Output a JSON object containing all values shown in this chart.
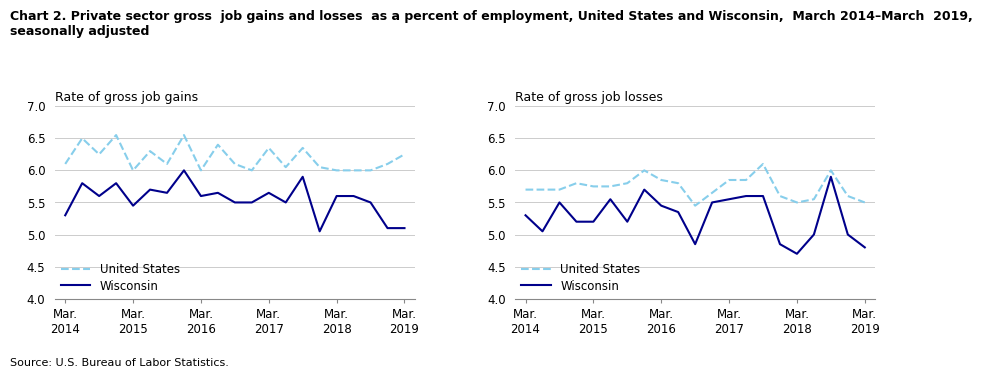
{
  "title": "Chart 2. Private sector gross  job gains and losses  as a percent of employment, United States and Wisconsin,  March 2014–March  2019,\nseasonally adjusted",
  "chart1_ylabel": "Rate of gross job gains",
  "chart2_ylabel": "Rate of gross job losses",
  "source": "Source: U.S. Bureau of Labor Statistics.",
  "x_labels": [
    "Mar.\n2014",
    "Mar.\n2015",
    "Mar.\n2016",
    "Mar.\n2017",
    "Mar.\n2018",
    "Mar.\n2019"
  ],
  "ylim": [
    4.0,
    7.0
  ],
  "yticks": [
    4.0,
    4.5,
    5.0,
    5.5,
    6.0,
    6.5,
    7.0
  ],
  "gains_us": [
    6.1,
    6.5,
    6.25,
    6.55,
    6.0,
    6.3,
    6.1,
    6.55,
    6.0,
    6.4,
    6.1,
    6.0,
    6.35,
    6.05,
    6.35,
    6.05,
    6.0,
    6.0,
    6.0,
    6.1,
    6.25
  ],
  "gains_wi": [
    5.3,
    5.8,
    5.6,
    5.8,
    5.45,
    5.7,
    5.65,
    6.0,
    5.6,
    5.65,
    5.5,
    5.5,
    5.65,
    5.5,
    5.9,
    5.05,
    5.6,
    5.6,
    5.5,
    5.1,
    5.1
  ],
  "losses_us": [
    5.7,
    5.7,
    5.7,
    5.8,
    5.75,
    5.75,
    5.8,
    6.0,
    5.85,
    5.8,
    5.45,
    5.65,
    5.85,
    5.85,
    6.1,
    5.6,
    5.5,
    5.55,
    6.0,
    5.6,
    5.5
  ],
  "losses_wi": [
    5.3,
    5.05,
    5.5,
    5.2,
    5.2,
    5.55,
    5.2,
    5.7,
    5.45,
    5.35,
    4.85,
    5.5,
    5.55,
    5.6,
    5.6,
    4.85,
    4.7,
    5.0,
    5.9,
    5.0,
    4.8
  ],
  "us_color": "#87CEEB",
  "wi_color": "#00008B",
  "legend_us": "United States",
  "legend_wi": "Wisconsin",
  "linewidth": 1.5
}
